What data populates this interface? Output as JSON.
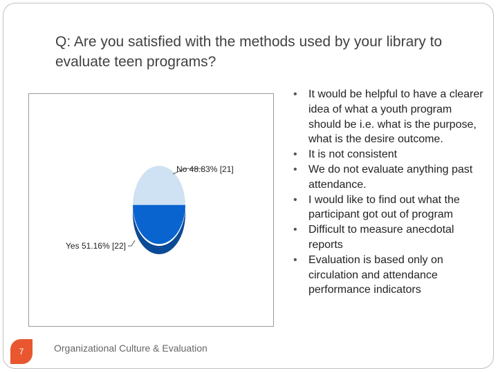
{
  "slide": {
    "title": "Q: Are you satisfied with the methods used by your library to evaluate teen programs?",
    "page_number": "7",
    "footer": "Organizational Culture & Evaluation"
  },
  "bullets": [
    "It would be helpful to have a clearer idea of what a youth program should be i.e. what is the purpose, what is the desire outcome.",
    "It is not consistent",
    "We do not evaluate anything past attendance.",
    "I would like to find out what the participant got out of program",
    "Difficult to measure anecdotal reports",
    "Evaluation is based only on circulation and attendance performance indicators"
  ],
  "colors": {
    "no_slice": "#cfe2f3",
    "yes_slice": "#0a64d0",
    "yes_side": "#0b4a96",
    "badge": "#e8572f"
  },
  "chart_data": {
    "type": "pie",
    "title": "",
    "slices": [
      {
        "label": "No",
        "value": 48.83,
        "count": 21,
        "display": "No 48.83% [21]"
      },
      {
        "label": "Yes",
        "value": 51.16,
        "count": 22,
        "display": "Yes 51.16% [22]"
      }
    ],
    "legend": "none",
    "labels_style": "leader-lines"
  }
}
